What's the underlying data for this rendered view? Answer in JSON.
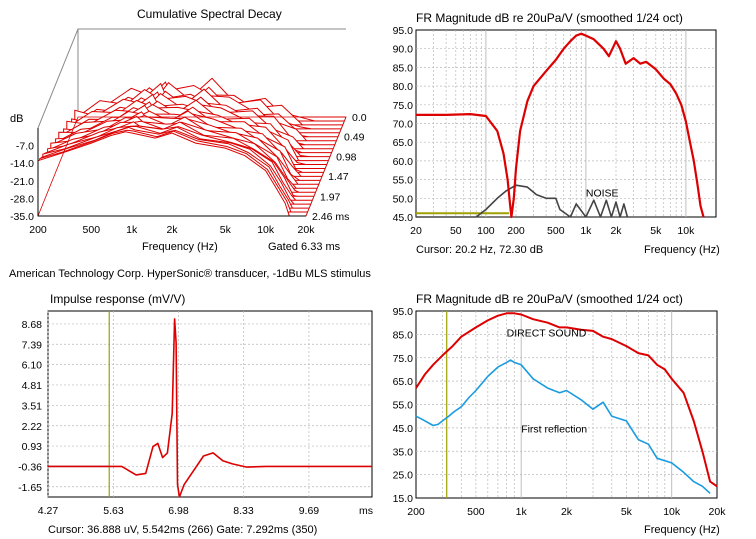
{
  "caption": "American Technology Corp. HyperSonic® transducer, -1dBu MLS stimulus",
  "charts": {
    "csd": {
      "title": "Cumulative Spectral Decay",
      "ylabel": "dB",
      "yticks": [
        "-7.0",
        "-14.0",
        "-21.0",
        "-28.0",
        "-35.0"
      ],
      "time_ticks": [
        "0.0",
        "0.49",
        "0.98",
        "1.47",
        "1.97",
        "2.46 ms"
      ],
      "xticks": [
        "200",
        "500",
        "1k",
        "2k",
        "5k",
        "10k",
        "20k"
      ],
      "xlabel": "Frequency (Hz)",
      "note": "Gated 6.33 ms"
    },
    "fr_top": {
      "title": "FR Magnitude dB re 20uPa/V (smoothed 1/24 oct)",
      "yticks": [
        "95.0",
        "90.0",
        "85.0",
        "80.0",
        "75.0",
        "70.0",
        "65.0",
        "60.0",
        "55.0",
        "50.0",
        "45.0"
      ],
      "xticks": [
        "20",
        "50",
        "100",
        "200",
        "500",
        "1k",
        "2k",
        "5k",
        "10k"
      ],
      "xlabel": "Frequency (Hz)",
      "cursor": "Cursor: 20.2 Hz, 72.30 dB",
      "noise_label": "NOISE"
    },
    "impulse": {
      "title": "Impulse response  (mV/V)",
      "yticks": [
        "8.68",
        "7.39",
        "6.10",
        "4.81",
        "3.51",
        "2.22",
        "0.93",
        "-0.36",
        "-1.65"
      ],
      "xticks": [
        "4.27",
        "5.63",
        "6.98",
        "8.33",
        "9.69",
        "ms"
      ],
      "cursor": "Cursor: 36.888 uV, 5.542ms (266)  Gate: 7.292ms (350)"
    },
    "fr_bottom": {
      "title": "FR Magnitude dB re 20uPa/V (smoothed 1/24 oct)",
      "yticks": [
        "95.0",
        "85.0",
        "75.0",
        "65.0",
        "55.0",
        "45.0",
        "35.0",
        "25.0",
        "15.0"
      ],
      "xticks": [
        "200",
        "500",
        "1k",
        "2k",
        "5k",
        "10k",
        "20k"
      ],
      "xlabel": "Frequency (Hz)",
      "direct_label": "DIRECT SOUND",
      "reflection_label": "First reflection"
    }
  },
  "colors": {
    "trace": "#dd0000",
    "noise": "#444444",
    "reflection": "#1a9be0",
    "cursor": "#a0a000",
    "grid": "#b8b8b8"
  },
  "chart_data": [
    {
      "type": "line",
      "title": "FR Magnitude dB re 20uPa/V (smoothed 1/24 oct)",
      "xscale": "log",
      "xlim": [
        20,
        20000
      ],
      "ylim": [
        45,
        95
      ],
      "xlabel": "Frequency (Hz)",
      "series": [
        {
          "x": [
            20,
            40,
            70,
            100,
            130,
            150,
            165,
            175,
            180,
            190,
            200,
            220,
            260,
            300,
            400,
            500,
            600,
            700,
            800,
            900,
            1000,
            1200,
            1500,
            1700,
            2000,
            2200,
            2500,
            3000,
            3500,
            4000,
            5000,
            6000,
            7000,
            8000,
            9000,
            10000,
            11000,
            12000,
            13000,
            14000,
            15000
          ],
          "y": [
            72.3,
            72.3,
            72.5,
            72.0,
            68.0,
            62.0,
            55.0,
            48.0,
            45.0,
            50.0,
            58.0,
            68.0,
            76.0,
            80.0,
            84.0,
            87.0,
            90.0,
            92.0,
            93.5,
            94.0,
            93.5,
            92.5,
            90.0,
            88.0,
            92.0,
            90.0,
            86.0,
            87.5,
            86.0,
            86.5,
            84.5,
            82.0,
            80.5,
            78.0,
            75.0,
            70.5,
            65.0,
            60.0,
            54.0,
            48.0,
            45.0
          ]
        },
        {
          "name": "NOISE",
          "x": [
            20,
            80,
            100,
            130,
            160,
            200,
            260,
            320,
            400,
            500,
            550,
            700,
            800,
            1000,
            1200,
            1400,
            1600,
            1800,
            2000,
            2200,
            2400,
            2600
          ],
          "y": [
            45,
            45,
            47,
            50,
            52,
            53.5,
            53.0,
            51.0,
            50.0,
            50.0,
            47.0,
            45.0,
            48.5,
            45.0,
            49.5,
            45.0,
            49.5,
            45.0,
            49.0,
            45.0,
            48.5,
            45.0
          ]
        }
      ]
    },
    {
      "type": "line",
      "title": "Impulse response  (mV/V)",
      "xlim": [
        4.27,
        11.0
      ],
      "ylim": [
        -2.3,
        9.5
      ],
      "series": [
        {
          "x": [
            4.27,
            5.8,
            6.1,
            6.3,
            6.45,
            6.55,
            6.65,
            6.75,
            6.85,
            6.9,
            6.93,
            6.96,
            7.0,
            7.1,
            7.3,
            7.5,
            7.7,
            7.9,
            8.1,
            8.4,
            8.8,
            9.5,
            10.5,
            11.0
          ],
          "y": [
            -0.36,
            -0.36,
            -0.9,
            -0.8,
            0.9,
            1.1,
            0.2,
            0.5,
            3.0,
            9.0,
            7.5,
            -1.5,
            -2.3,
            -1.5,
            -0.6,
            0.3,
            0.5,
            0.0,
            -0.2,
            -0.4,
            -0.36,
            -0.36,
            -0.36,
            -0.36
          ]
        }
      ]
    },
    {
      "type": "line",
      "title": "FR Magnitude dB re 20uPa/V (smoothed 1/24 oct)",
      "xscale": "log",
      "xlim": [
        200,
        20000
      ],
      "ylim": [
        15,
        95
      ],
      "xlabel": "Frequency (Hz)",
      "series": [
        {
          "name": "DIRECT SOUND",
          "x": [
            200,
            230,
            260,
            300,
            350,
            400,
            500,
            600,
            700,
            800,
            900,
            1000,
            1200,
            1500,
            1800,
            2000,
            2500,
            3000,
            3500,
            4000,
            5000,
            6000,
            7000,
            8000,
            9000,
            10000,
            12000,
            14000,
            16000,
            18000,
            20000
          ],
          "y": [
            62,
            68,
            72,
            76,
            80,
            84,
            88,
            91,
            93,
            94,
            94,
            93.5,
            91.5,
            90,
            88,
            88,
            87,
            86.5,
            84,
            83,
            80,
            77,
            76,
            72,
            70,
            66,
            60,
            48,
            35,
            22,
            20
          ]
        },
        {
          "name": "First reflection",
          "x": [
            200,
            230,
            260,
            280,
            300,
            330,
            360,
            400,
            450,
            500,
            600,
            700,
            800,
            850,
            900,
            1000,
            1200,
            1500,
            1800,
            2000,
            2500,
            3000,
            3500,
            4000,
            5000,
            6000,
            7000,
            8000,
            10000,
            12000,
            14000,
            16000,
            18000
          ],
          "y": [
            50,
            48,
            46,
            46.5,
            48,
            50,
            52,
            54,
            58,
            61,
            67,
            71,
            73,
            74,
            73,
            72,
            66,
            62,
            60,
            61,
            57,
            53,
            56,
            50,
            48,
            40,
            38,
            32,
            30,
            26,
            22,
            20,
            17
          ]
        }
      ]
    },
    {
      "type": "area",
      "title": "Cumulative Spectral Decay",
      "xscale": "log",
      "xlim": [
        200,
        20000
      ],
      "ylim": [
        -35,
        0
      ],
      "time_slices_ms": [
        0.0,
        0.49,
        0.98,
        1.47,
        1.97,
        2.46
      ],
      "xlabel": "Frequency (Hz)",
      "series": [
        {
          "name": "0.0",
          "x": [
            200,
            300,
            500,
            700,
            900,
            1000,
            1500,
            2000,
            3000,
            5000,
            7000,
            10000,
            12000,
            14000,
            15000,
            20000
          ],
          "y": [
            -13,
            -10,
            -6,
            -3,
            -1.5,
            -2,
            -4,
            -2,
            -6,
            -8,
            -11,
            -17,
            -24,
            -30,
            -35,
            -35
          ]
        }
      ]
    }
  ]
}
